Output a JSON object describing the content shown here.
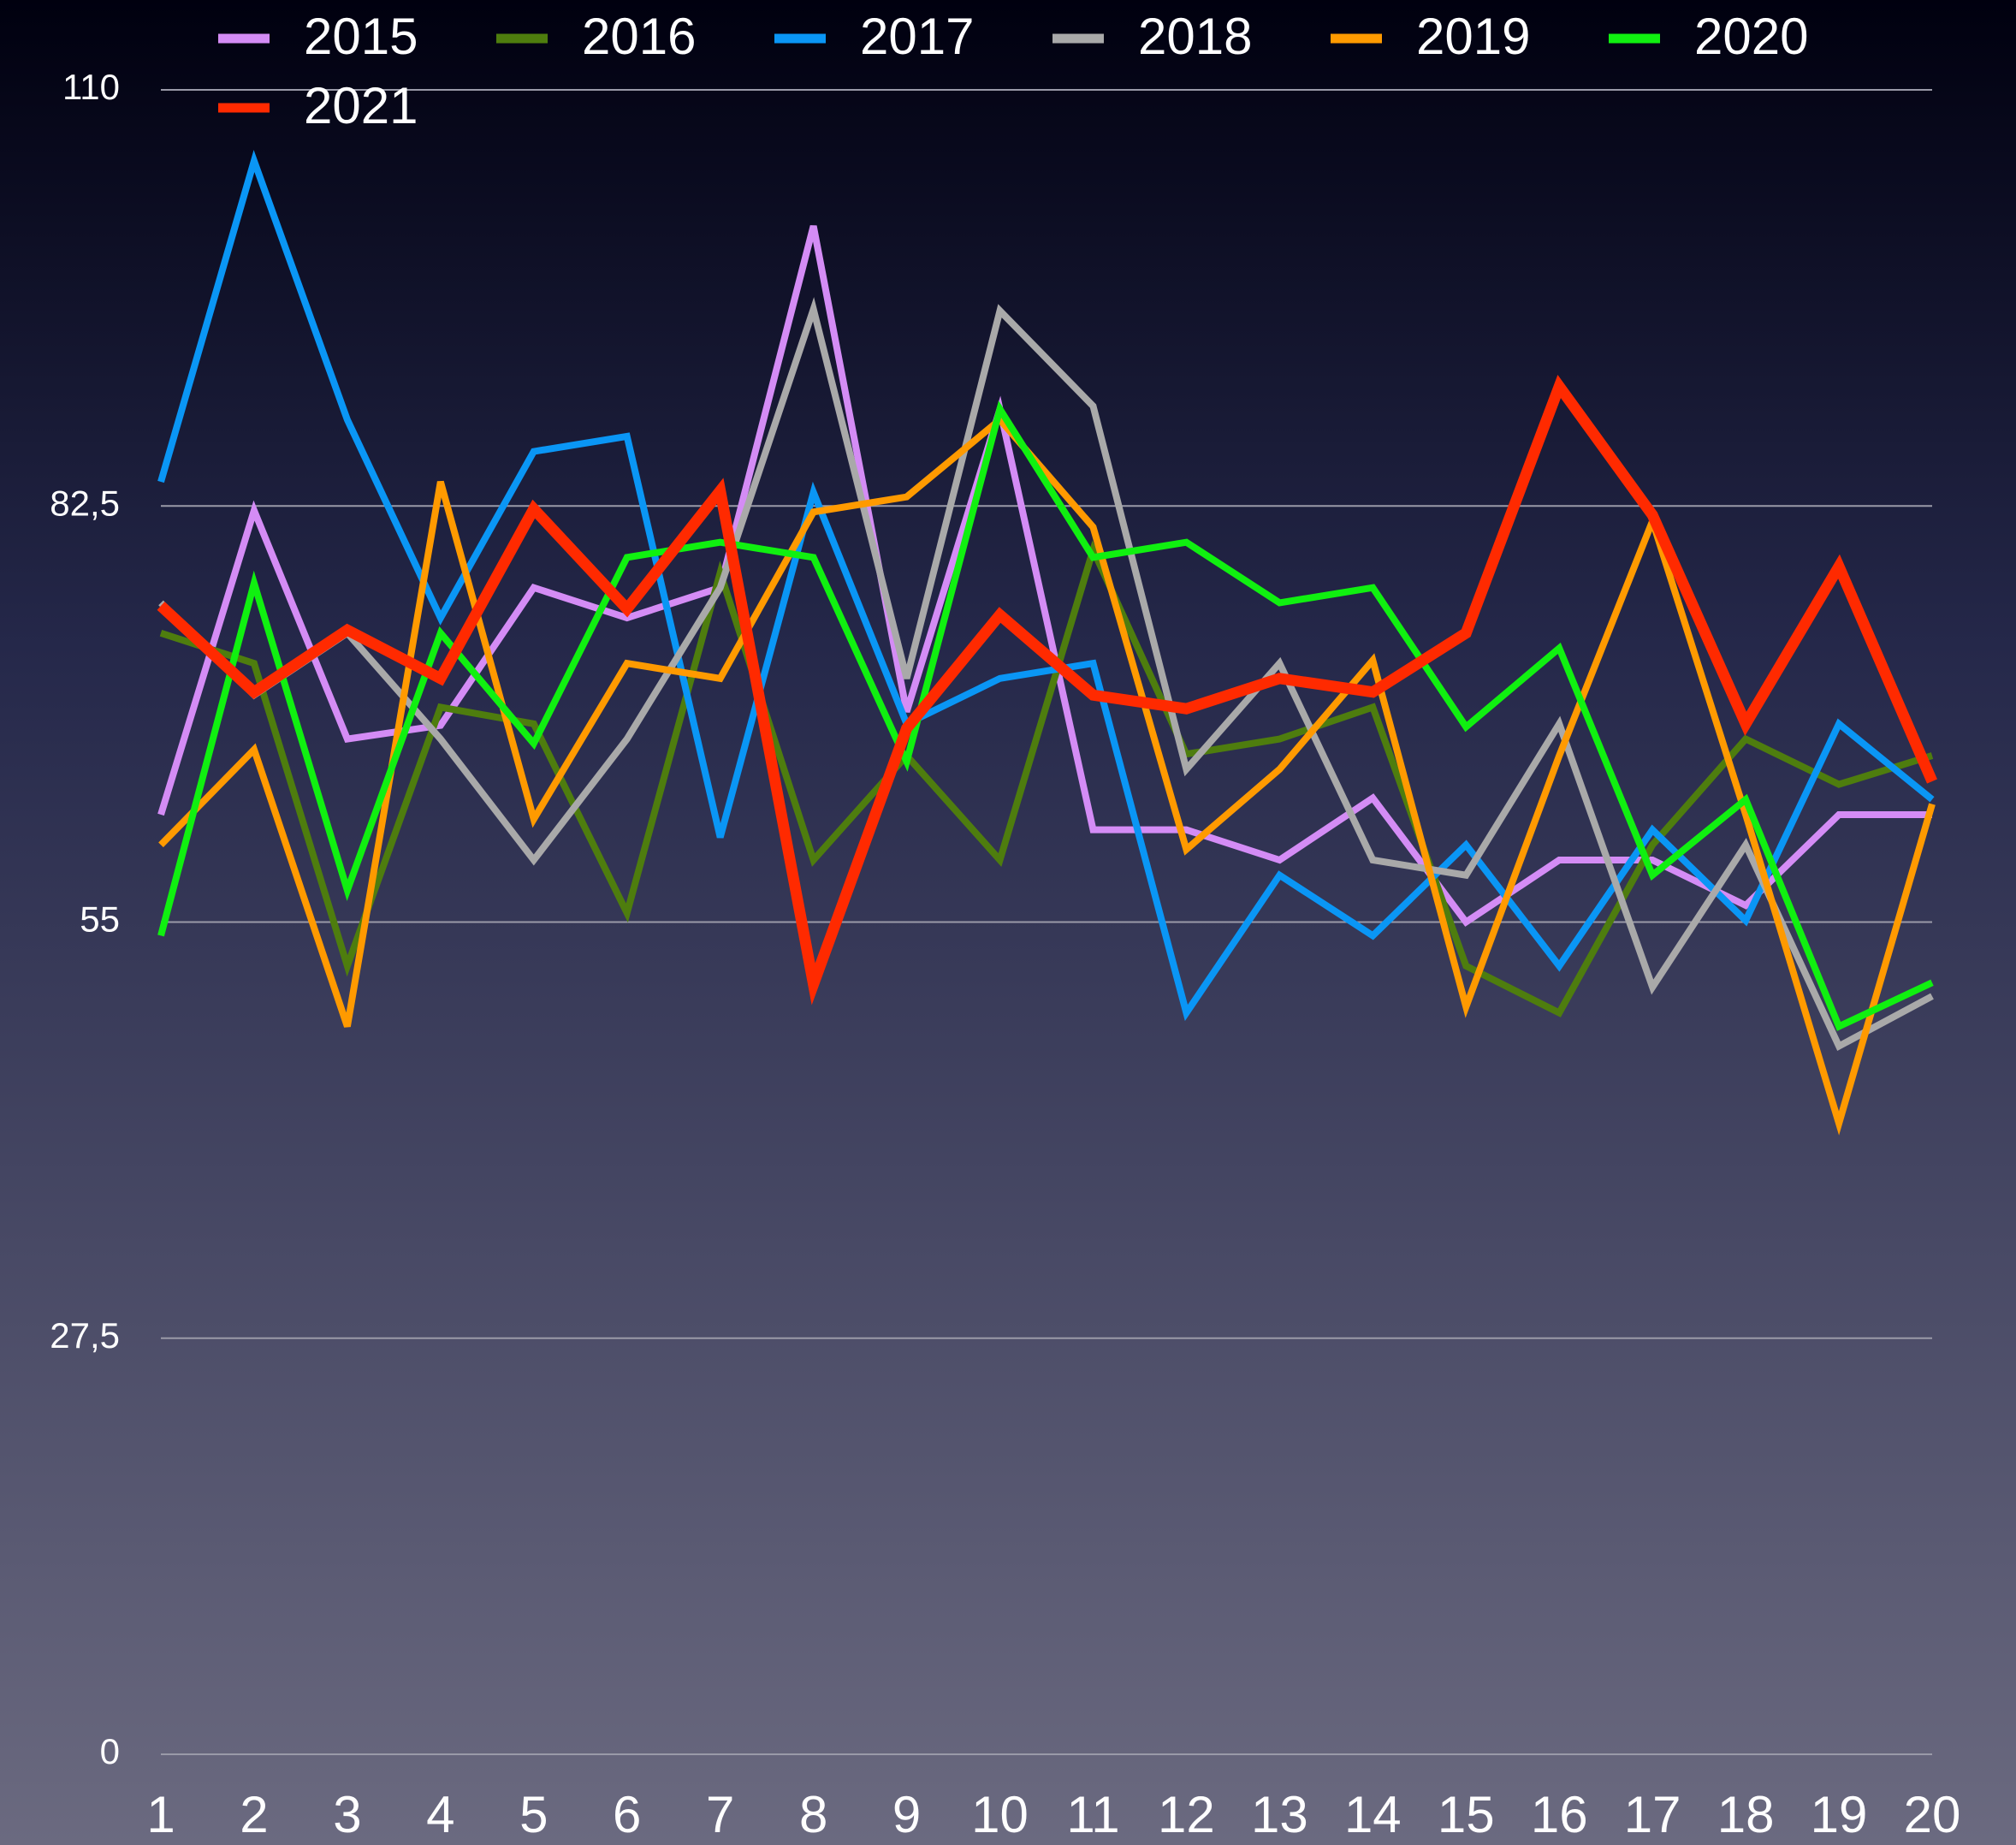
{
  "chart_data": {
    "type": "line",
    "categories": [
      "1",
      "2",
      "3",
      "4",
      "5",
      "6",
      "7",
      "8",
      "9",
      "10",
      "11",
      "12",
      "13",
      "14",
      "15",
      "16",
      "17",
      "18",
      "19",
      "20"
    ],
    "ylim": [
      0,
      110
    ],
    "yticks": [
      0,
      {
        "value": 27.5,
        "label": "27,5"
      },
      55,
      {
        "value": 82.5,
        "label": "82,5"
      },
      110
    ],
    "grid": true,
    "legend": "top",
    "series": [
      {
        "name": "2015",
        "color": "#d48cf5",
        "values": [
          62.1,
          82.2,
          67.1,
          68,
          77.1,
          75.1,
          77.1,
          101,
          68.9,
          88.9,
          61.1,
          61.1,
          59.1,
          63.2,
          55,
          59.1,
          59.1,
          56.1,
          62.1,
          62.1
        ]
      },
      {
        "name": "2016",
        "color": "#4e7d0e",
        "values": [
          74.1,
          72.1,
          52.1,
          69.2,
          68.1,
          55.6,
          78.1,
          59.1,
          66,
          59.1,
          79.6,
          66.1,
          67.1,
          69.2,
          52.1,
          49,
          60.1,
          67.1,
          64.1,
          66
        ]
      },
      {
        "name": "2017",
        "color": "#0a96f5",
        "values": [
          84.1,
          105.3,
          88.2,
          75.1,
          86.1,
          87.1,
          60.6,
          83.4,
          68.1,
          71.1,
          72.1,
          49,
          58.1,
          54.1,
          60.1,
          52.1,
          61.1,
          55.1,
          68.1,
          63.1
        ]
      },
      {
        "name": "2018",
        "color": "#a9a9a9",
        "values": [
          76.1,
          70,
          74.1,
          67.1,
          59.1,
          67.1,
          77.1,
          95.5,
          71.1,
          95.4,
          89.1,
          65.1,
          72.1,
          59.1,
          58.1,
          68.1,
          50.7,
          60.1,
          46.8,
          50.1
        ]
      },
      {
        "name": "2019",
        "color": "#ff9a00",
        "values": [
          60.1,
          66.4,
          48.1,
          84.1,
          61.8,
          72.1,
          71.1,
          82.1,
          83.1,
          88.2,
          81.1,
          59.8,
          65.1,
          72.3,
          49.4,
          66,
          81.5,
          62.1,
          41.7,
          62.8
        ]
      },
      {
        "name": "2020",
        "color": "#10f010",
        "values": [
          54.1,
          77.4,
          57.1,
          74.1,
          66.8,
          79.1,
          80.1,
          79.1,
          65.6,
          88.9,
          79.1,
          80.1,
          76.1,
          77.1,
          67.9,
          73.1,
          58.1,
          63.1,
          48.1,
          51
        ]
      },
      {
        "name": "2021",
        "color": "#ff2a00",
        "values": [
          75.9,
          70.2,
          74.3,
          71.1,
          82.3,
          75.7,
          83.5,
          50.9,
          67.8,
          75.3,
          70,
          69.1,
          71.1,
          70.2,
          74.1,
          90.4,
          81.9,
          68.1,
          78.5,
          64.3
        ]
      }
    ]
  }
}
